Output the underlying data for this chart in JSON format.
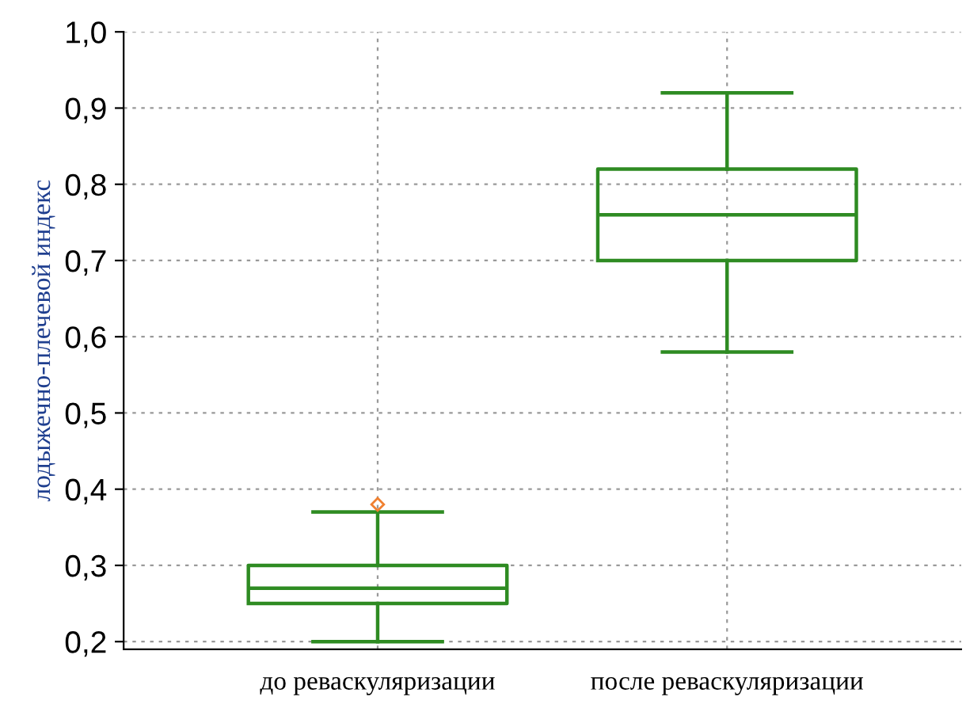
{
  "chart_data": {
    "type": "box",
    "ylabel": "лодыжечно-плечевой индекс",
    "categories": [
      "до реваскуляризации",
      "после реваскуляризации"
    ],
    "boxes": [
      {
        "low": 0.2,
        "q1": 0.25,
        "median": 0.27,
        "q3": 0.3,
        "high": 0.37,
        "outliers": [
          0.38
        ]
      },
      {
        "low": 0.58,
        "q1": 0.7,
        "median": 0.76,
        "q3": 0.82,
        "high": 0.92
      }
    ],
    "color": "#2e8b22",
    "ylim": [
      0.19,
      1.0
    ],
    "yticks": [
      {
        "value": 0.2,
        "label": "0,2"
      },
      {
        "value": 0.3,
        "label": "0,3"
      },
      {
        "value": 0.4,
        "label": "0,4"
      },
      {
        "value": 0.5,
        "label": "0,5"
      },
      {
        "value": 0.6,
        "label": "0,6"
      },
      {
        "value": 0.7,
        "label": "0,7"
      },
      {
        "value": 0.8,
        "label": "0,8"
      },
      {
        "value": 0.9,
        "label": "0,9"
      },
      {
        "value": 1.0,
        "label": "1,0"
      }
    ],
    "grid": true
  }
}
